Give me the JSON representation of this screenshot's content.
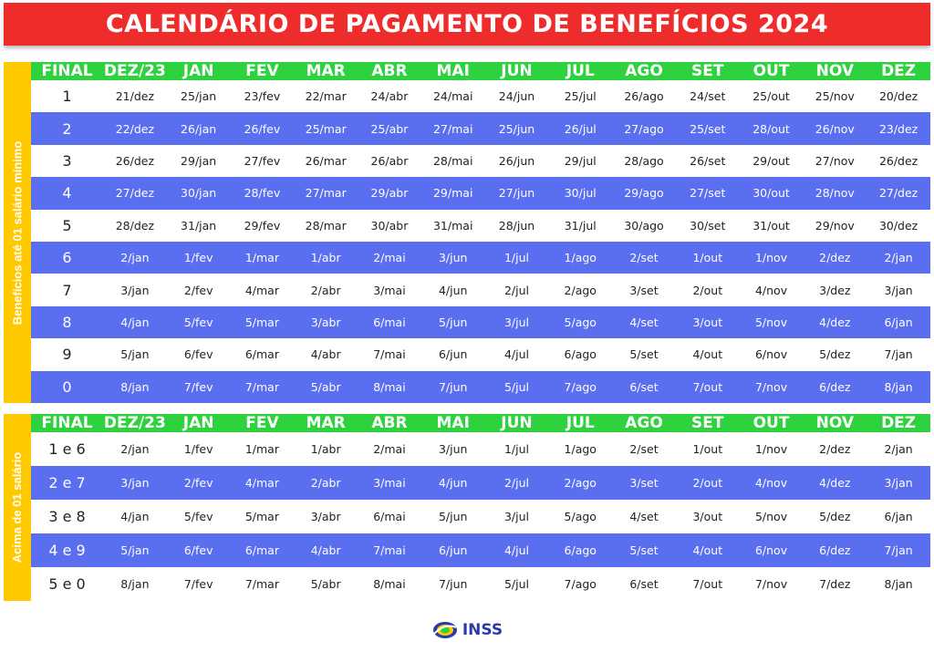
{
  "title": "CALENDÁRIO DE PAGAMENTO DE BENEFÍCIOS 2024",
  "headers": [
    "FINAL",
    "DEZ/23",
    "JAN",
    "FEV",
    "MAR",
    "ABR",
    "MAI",
    "JUN",
    "JUL",
    "AGO",
    "SET",
    "OUT",
    "NOV",
    "DEZ"
  ],
  "section1": {
    "label": "Benefícios até 01 salário mínimo",
    "rows": [
      [
        "1",
        "21/dez",
        "25/jan",
        "23/fev",
        "22/mar",
        "24/abr",
        "24/mai",
        "24/jun",
        "25/jul",
        "26/ago",
        "24/set",
        "25/out",
        "25/nov",
        "20/dez"
      ],
      [
        "2",
        "22/dez",
        "26/jan",
        "26/fev",
        "25/mar",
        "25/abr",
        "27/mai",
        "25/jun",
        "26/jul",
        "27/ago",
        "25/set",
        "28/out",
        "26/nov",
        "23/dez"
      ],
      [
        "3",
        "26/dez",
        "29/jan",
        "27/fev",
        "26/mar",
        "26/abr",
        "28/mai",
        "26/jun",
        "29/jul",
        "28/ago",
        "26/set",
        "29/out",
        "27/nov",
        "26/dez"
      ],
      [
        "4",
        "27/dez",
        "30/jan",
        "28/fev",
        "27/mar",
        "29/abr",
        "29/mai",
        "27/jun",
        "30/jul",
        "29/ago",
        "27/set",
        "30/out",
        "28/nov",
        "27/dez"
      ],
      [
        "5",
        "28/dez",
        "31/jan",
        "29/fev",
        "28/mar",
        "30/abr",
        "31/mai",
        "28/jun",
        "31/jul",
        "30/ago",
        "30/set",
        "31/out",
        "29/nov",
        "30/dez"
      ],
      [
        "6",
        "2/jan",
        "1/fev",
        "1/mar",
        "1/abr",
        "2/mai",
        "3/jun",
        "1/jul",
        "1/ago",
        "2/set",
        "1/out",
        "1/nov",
        "2/dez",
        "2/jan"
      ],
      [
        "7",
        "3/jan",
        "2/fev",
        "4/mar",
        "2/abr",
        "3/mai",
        "4/jun",
        "2/jul",
        "2/ago",
        "3/set",
        "2/out",
        "4/nov",
        "3/dez",
        "3/jan"
      ],
      [
        "8",
        "4/jan",
        "5/fev",
        "5/mar",
        "3/abr",
        "6/mai",
        "5/jun",
        "3/jul",
        "5/ago",
        "4/set",
        "3/out",
        "5/nov",
        "4/dez",
        "6/jan"
      ],
      [
        "9",
        "5/jan",
        "6/fev",
        "6/mar",
        "4/abr",
        "7/mai",
        "6/jun",
        "4/jul",
        "6/ago",
        "5/set",
        "4/out",
        "6/nov",
        "5/dez",
        "7/jan"
      ],
      [
        "0",
        "8/jan",
        "7/fev",
        "7/mar",
        "5/abr",
        "8/mai",
        "7/jun",
        "5/jul",
        "7/ago",
        "6/set",
        "7/out",
        "7/nov",
        "6/dez",
        "8/jan"
      ]
    ]
  },
  "section2": {
    "label": "Acima de 01 salário",
    "rows": [
      [
        "1 e 6",
        "2/jan",
        "1/fev",
        "1/mar",
        "1/abr",
        "2/mai",
        "3/jun",
        "1/jul",
        "1/ago",
        "2/set",
        "1/out",
        "1/nov",
        "2/dez",
        "2/jan"
      ],
      [
        "2 e 7",
        "3/jan",
        "2/fev",
        "4/mar",
        "2/abr",
        "3/mai",
        "4/jun",
        "2/jul",
        "2/ago",
        "3/set",
        "2/out",
        "4/nov",
        "4/dez",
        "3/jan"
      ],
      [
        "3 e 8",
        "4/jan",
        "5/fev",
        "5/mar",
        "3/abr",
        "6/mai",
        "5/jun",
        "3/jul",
        "5/ago",
        "4/set",
        "3/out",
        "5/nov",
        "5/dez",
        "6/jan"
      ],
      [
        "4 e 9",
        "5/jan",
        "6/fev",
        "6/mar",
        "4/abr",
        "7/mai",
        "6/jun",
        "4/jul",
        "6/ago",
        "5/set",
        "4/out",
        "6/nov",
        "6/dez",
        "7/jan"
      ],
      [
        "5 e 0",
        "8/jan",
        "7/fev",
        "7/mar",
        "5/abr",
        "8/mai",
        "7/jun",
        "5/jul",
        "7/ago",
        "6/set",
        "7/out",
        "7/nov",
        "7/dez",
        "8/jan"
      ]
    ]
  },
  "footer": {
    "logo_text": "INSS"
  },
  "colors": {
    "title_bg": "#ee2c2c",
    "header_bg": "#2ed23e",
    "stripe_bg": "#5a6ef0",
    "side_bg": "#ffc900"
  }
}
